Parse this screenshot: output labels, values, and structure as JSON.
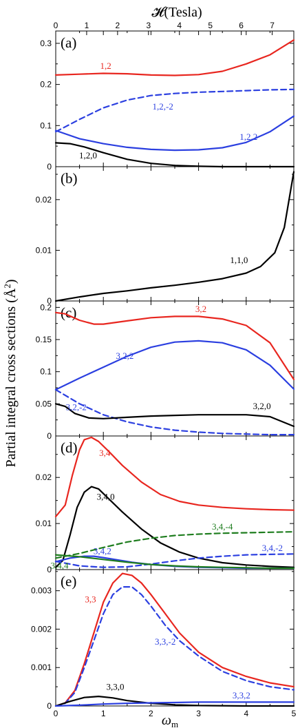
{
  "top_axis": {
    "label": "𝓗(Tesla)",
    "ticks": [
      "0",
      "1",
      "2",
      "3",
      "4",
      "5",
      "6",
      "7"
    ],
    "max": 7.7
  },
  "x_label": "ω",
  "x_label_sub": "m",
  "y_label": "Partial integral cross sections (Å",
  "y_label_sup": "2",
  "y_label_end": ")",
  "colors": {
    "red": "#e8261f",
    "blue": "#2b3fe0",
    "black": "#000000",
    "green": "#1e7d1e"
  },
  "chart_data": [
    {
      "type": "line",
      "panel": "(a)",
      "xlim": [
        0,
        5
      ],
      "ylim": [
        0,
        0.33
      ],
      "yticks": [
        0,
        0.1,
        0.2,
        0.3
      ],
      "yticklabels": [
        "0",
        "0.1",
        "0.2",
        "0.3"
      ],
      "xticks": [
        0,
        1,
        2,
        3,
        4,
        5
      ],
      "series": [
        {
          "name": "1,2",
          "color": "red",
          "dashed": false,
          "x": [
            0,
            0.5,
            1,
            1.5,
            2,
            2.5,
            3,
            3.5,
            4,
            4.5,
            5
          ],
          "y": [
            0.223,
            0.225,
            0.227,
            0.226,
            0.223,
            0.222,
            0.224,
            0.232,
            0.25,
            0.272,
            0.308
          ]
        },
        {
          "name": "1,2,-2",
          "color": "blue",
          "dashed": true,
          "x": [
            0,
            0.5,
            1,
            1.5,
            2,
            2.5,
            3,
            3.5,
            4,
            4.5,
            5
          ],
          "y": [
            0.085,
            0.115,
            0.143,
            0.162,
            0.173,
            0.178,
            0.181,
            0.183,
            0.185,
            0.187,
            0.188
          ]
        },
        {
          "name": "1,2,2",
          "color": "blue",
          "dashed": false,
          "x": [
            0,
            0.5,
            1,
            1.5,
            2,
            2.5,
            3,
            3.5,
            4,
            4.5,
            5
          ],
          "y": [
            0.088,
            0.068,
            0.056,
            0.047,
            0.042,
            0.04,
            0.041,
            0.046,
            0.059,
            0.085,
            0.123
          ]
        },
        {
          "name": "1,2,0",
          "color": "black",
          "dashed": false,
          "x": [
            0,
            0.3,
            0.6,
            1,
            1.5,
            2,
            2.5,
            3,
            3.5,
            4,
            5
          ],
          "y": [
            0.058,
            0.056,
            0.048,
            0.034,
            0.018,
            0.008,
            0.003,
            0.001,
            0,
            0,
            0
          ]
        }
      ],
      "labels": [
        {
          "text": "1,2",
          "color": "red",
          "x": 1.05,
          "y": 0.238
        },
        {
          "text": "1,2,-2",
          "color": "blue",
          "x": 2.25,
          "y": 0.139
        },
        {
          "text": "1,2,2",
          "color": "blue",
          "x": 4.05,
          "y": 0.065
        },
        {
          "text": "1,2,0",
          "color": "black",
          "x": 0.68,
          "y": 0.02
        }
      ]
    },
    {
      "type": "line",
      "panel": "(b)",
      "xlim": [
        0,
        5
      ],
      "ylim": [
        0,
        0.0265
      ],
      "yticks": [
        0,
        0.01,
        0.02
      ],
      "yticklabels": [
        "0",
        "0.01",
        "0.02"
      ],
      "xticks": [
        0,
        1,
        2,
        3,
        4,
        5
      ],
      "series": [
        {
          "name": "1,1,0",
          "color": "black",
          "dashed": false,
          "x": [
            0,
            0.5,
            1,
            1.5,
            2,
            2.5,
            3,
            3.5,
            4,
            4.3,
            4.6,
            4.8,
            5
          ],
          "y": [
            0,
            0.0008,
            0.0015,
            0.002,
            0.0026,
            0.0031,
            0.0037,
            0.0044,
            0.0055,
            0.0068,
            0.0095,
            0.0145,
            0.0255
          ]
        }
      ],
      "labels": [
        {
          "text": "1,1,0",
          "color": "black",
          "x": 3.85,
          "y": 0.0075
        }
      ]
    },
    {
      "type": "line",
      "panel": "(c)",
      "xlim": [
        0,
        5
      ],
      "ylim": [
        0,
        0.21
      ],
      "yticks": [
        0,
        0.05,
        0.1,
        0.15,
        0.2
      ],
      "yticklabels": [
        "0",
        "0.05",
        "0.1",
        "0.15",
        "0.2"
      ],
      "xticks": [
        0,
        1,
        2,
        3,
        4,
        5
      ],
      "series": [
        {
          "name": "3,2",
          "color": "red",
          "dashed": false,
          "x": [
            0,
            0.2,
            0.5,
            0.8,
            1,
            1.5,
            2,
            2.5,
            3,
            3.5,
            4,
            4.5,
            5
          ],
          "y": [
            0.192,
            0.19,
            0.18,
            0.174,
            0.174,
            0.179,
            0.184,
            0.186,
            0.186,
            0.182,
            0.172,
            0.145,
            0.088
          ]
        },
        {
          "name": "3,2,2",
          "color": "blue",
          "dashed": false,
          "x": [
            0,
            0.5,
            1,
            1.5,
            2,
            2.5,
            3,
            3.5,
            4,
            4.5,
            5
          ],
          "y": [
            0.072,
            0.09,
            0.107,
            0.124,
            0.138,
            0.146,
            0.148,
            0.145,
            0.134,
            0.11,
            0.073
          ]
        },
        {
          "name": "3,2,-2",
          "color": "blue",
          "dashed": true,
          "x": [
            0,
            0.5,
            1,
            1.5,
            2,
            2.5,
            3,
            3.5,
            4,
            4.5,
            5
          ],
          "y": [
            0.072,
            0.05,
            0.033,
            0.022,
            0.014,
            0.009,
            0.006,
            0.004,
            0.003,
            0.002,
            0.002
          ]
        },
        {
          "name": "3,2,0",
          "color": "black",
          "dashed": false,
          "x": [
            0,
            0.2,
            0.4,
            0.7,
            1,
            1.5,
            2,
            2.5,
            3,
            3.5,
            4,
            4.5,
            5
          ],
          "y": [
            0.05,
            0.046,
            0.035,
            0.028,
            0.027,
            0.029,
            0.031,
            0.032,
            0.033,
            0.033,
            0.033,
            0.03,
            0.015
          ]
        }
      ],
      "labels": [
        {
          "text": "3,2",
          "color": "red",
          "x": 3.05,
          "y": 0.193
        },
        {
          "text": "3,2,2",
          "color": "blue",
          "x": 1.45,
          "y": 0.12
        },
        {
          "text": "3,2,-2",
          "color": "blue",
          "x": 0.43,
          "y": 0.04
        },
        {
          "text": "3,2,0",
          "color": "black",
          "x": 4.33,
          "y": 0.042
        }
      ]
    },
    {
      "type": "line",
      "panel": "(d)",
      "xlim": [
        0,
        5
      ],
      "ylim": [
        0,
        0.029
      ],
      "yticks": [
        0,
        0.01,
        0.02
      ],
      "yticklabels": [
        "0",
        "0.01",
        "0.02"
      ],
      "xticks": [
        0,
        1,
        2,
        3,
        4,
        5
      ],
      "series": [
        {
          "name": "3,4",
          "color": "red",
          "dashed": false,
          "x": [
            0,
            0.2,
            0.35,
            0.5,
            0.6,
            0.75,
            0.9,
            1.1,
            1.4,
            1.8,
            2.2,
            2.6,
            3,
            3.5,
            4,
            4.5,
            5
          ],
          "y": [
            0.0115,
            0.014,
            0.0205,
            0.026,
            0.0282,
            0.0287,
            0.0278,
            0.0258,
            0.0226,
            0.019,
            0.0163,
            0.0148,
            0.014,
            0.0135,
            0.0132,
            0.013,
            0.0129
          ]
        },
        {
          "name": "3,4,0",
          "color": "black",
          "dashed": false,
          "x": [
            0,
            0.15,
            0.3,
            0.45,
            0.6,
            0.75,
            0.9,
            1.1,
            1.4,
            1.8,
            2.2,
            2.6,
            3,
            3.5,
            4,
            4.5,
            5
          ],
          "y": [
            0.0005,
            0.002,
            0.0075,
            0.0135,
            0.0168,
            0.018,
            0.0175,
            0.0155,
            0.0125,
            0.0088,
            0.0058,
            0.0038,
            0.0025,
            0.0015,
            0.001,
            0.0007,
            0.0005
          ]
        },
        {
          "name": "3,4,-4",
          "color": "green",
          "dashed": true,
          "x": [
            0,
            0.5,
            1,
            1.5,
            2,
            2.5,
            3,
            3.5,
            4,
            4.5,
            5
          ],
          "y": [
            0.0025,
            0.0035,
            0.0048,
            0.006,
            0.0068,
            0.0074,
            0.0077,
            0.0079,
            0.008,
            0.0081,
            0.0082
          ]
        },
        {
          "name": "3,4,-2",
          "color": "blue",
          "dashed": true,
          "x": [
            0,
            0.5,
            1,
            1.5,
            2,
            2.5,
            3,
            3.5,
            4,
            4.5,
            5
          ],
          "y": [
            0.0018,
            0.0008,
            0.0005,
            0.0006,
            0.0012,
            0.0019,
            0.0025,
            0.0029,
            0.0032,
            0.0033,
            0.0034
          ]
        },
        {
          "name": "3,4,2",
          "color": "blue",
          "dashed": false,
          "x": [
            0,
            0.3,
            0.6,
            0.8,
            1,
            1.3,
            1.6,
            2,
            2.5,
            3,
            3.5,
            4,
            4.5,
            5
          ],
          "y": [
            0.0017,
            0.0025,
            0.0029,
            0.0029,
            0.0026,
            0.0021,
            0.0016,
            0.0011,
            0.0007,
            0.0005,
            0.0004,
            0.0003,
            0.0003,
            0.0003
          ]
        },
        {
          "name": "3,4,4",
          "color": "green",
          "dashed": false,
          "x": [
            0,
            0.5,
            1,
            1.5,
            2,
            2.5,
            3,
            3.5,
            4,
            4.5,
            5
          ],
          "y": [
            0.0032,
            0.0028,
            0.0022,
            0.0016,
            0.0011,
            0.0008,
            0.0006,
            0.0005,
            0.0004,
            0.0003,
            0.0003
          ]
        }
      ],
      "labels": [
        {
          "text": "3,4",
          "color": "red",
          "x": 1.03,
          "y": 0.0247
        },
        {
          "text": "3,4,0",
          "color": "black",
          "x": 1.05,
          "y": 0.0152
        },
        {
          "text": "3,4,-4",
          "color": "green",
          "x": 3.5,
          "y": 0.0087
        },
        {
          "text": "3,4,-2",
          "color": "blue",
          "x": 4.55,
          "y": 0.004
        },
        {
          "text": "3,4,2",
          "color": "blue",
          "x": 0.98,
          "y": 0.0034
        },
        {
          "text": "3,4,4",
          "color": "green",
          "x": 0.08,
          "y": 0.0002
        }
      ]
    },
    {
      "type": "line",
      "panel": "(e)",
      "xlim": [
        0,
        5
      ],
      "ylim": [
        0,
        0.00355
      ],
      "yticks": [
        0,
        0.001,
        0.002,
        0.003
      ],
      "yticklabels": [
        "0",
        "0.001",
        "0.002",
        "0.003"
      ],
      "xticks": [
        0,
        1,
        2,
        3,
        4,
        5
      ],
      "xticklabels": [
        "0",
        "1",
        "2",
        "3",
        "4",
        "5"
      ],
      "series": [
        {
          "name": "3,3",
          "color": "red",
          "dashed": false,
          "x": [
            0,
            0.2,
            0.4,
            0.6,
            0.8,
            1,
            1.2,
            1.4,
            1.6,
            1.8,
            2,
            2.3,
            2.6,
            3,
            3.5,
            4,
            4.5,
            5
          ],
          "y": [
            0,
            8e-05,
            0.0004,
            0.0011,
            0.0019,
            0.0027,
            0.0032,
            0.00345,
            0.0034,
            0.0032,
            0.0029,
            0.0024,
            0.0019,
            0.0014,
            0.001,
            0.00077,
            0.0006,
            0.0005
          ]
        },
        {
          "name": "3,3,-2",
          "color": "blue",
          "dashed": true,
          "x": [
            0,
            0.2,
            0.4,
            0.6,
            0.8,
            1,
            1.2,
            1.4,
            1.6,
            1.8,
            2,
            2.3,
            2.6,
            3,
            3.5,
            4,
            4.5,
            5
          ],
          "y": [
            0,
            7e-05,
            0.00035,
            0.001,
            0.0017,
            0.0024,
            0.0029,
            0.0031,
            0.0031,
            0.0029,
            0.0026,
            0.0021,
            0.0017,
            0.0013,
            0.0009,
            0.00066,
            0.0005,
            0.00042
          ]
        },
        {
          "name": "3,3,0",
          "color": "black",
          "dashed": false,
          "x": [
            0,
            0.3,
            0.6,
            0.9,
            1.2,
            1.5,
            2,
            2.5,
            3,
            4,
            5
          ],
          "y": [
            0,
            0.00012,
            0.00022,
            0.00025,
            0.00021,
            0.00014,
            7e-05,
            3e-05,
            1e-05,
            0,
            0
          ]
        },
        {
          "name": "3,3,2",
          "color": "blue",
          "dashed": false,
          "x": [
            0,
            0.5,
            1,
            1.5,
            2,
            2.5,
            3,
            3.5,
            4,
            4.5,
            5
          ],
          "y": [
            0,
            2e-05,
            5e-05,
            7e-05,
            8e-05,
            9e-05,
            0.0001,
            0.0001,
            0.0001,
            0.0001,
            0.0001
          ]
        }
      ],
      "labels": [
        {
          "text": "3,3",
          "color": "red",
          "x": 0.73,
          "y": 0.0027
        },
        {
          "text": "3,3,-2",
          "color": "blue",
          "x": 2.3,
          "y": 0.0016
        },
        {
          "text": "3,3,0",
          "color": "black",
          "x": 1.25,
          "y": 0.00042
        },
        {
          "text": "3,3,2",
          "color": "blue",
          "x": 3.9,
          "y": 0.0002
        }
      ]
    }
  ]
}
